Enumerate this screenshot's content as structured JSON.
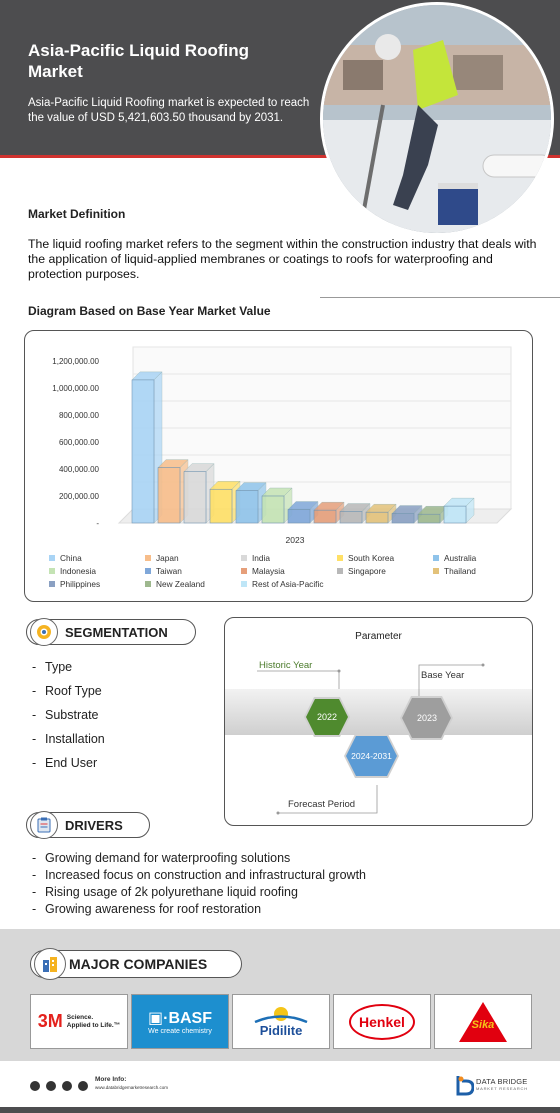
{
  "header": {
    "title": "Asia-Pacific Liquid Roofing Market",
    "subtitle": "Asia-Pacific Liquid Roofing market is expected to reach the value of USD 5,421,603.50 thousand by 2031."
  },
  "definition": {
    "heading": "Market Definition",
    "text": "The liquid roofing market refers to the segment within the construction industry that deals with the application of liquid-applied membranes or coatings to roofs for waterproofing and protection purposes."
  },
  "diagram": {
    "heading": "Diagram Based on Base Year Market Value"
  },
  "chart_data": {
    "type": "bar",
    "xlabel": "2023",
    "ylim": [
      0,
      1200000
    ],
    "yticks": [
      "1,200,000.00",
      "1,000,000.00",
      "800,000.00",
      "600,000.00",
      "400,000.00",
      "200,000.00",
      "-"
    ],
    "categories": [
      "China",
      "Japan",
      "India",
      "South Korea",
      "Australia",
      "Indonesia",
      "Taiwan",
      "Malaysia",
      "Singapore",
      "Thailand",
      "Philippines",
      "New Zealand",
      "Rest of Asia-Pacific"
    ],
    "values": [
      1060000,
      410000,
      380000,
      250000,
      240000,
      200000,
      100000,
      95000,
      85000,
      80000,
      70000,
      65000,
      125000
    ],
    "colors": [
      "#a9d4f5",
      "#f7bd8a",
      "#d9d9d9",
      "#ffe066",
      "#8fc3ea",
      "#c4e3b4",
      "#7fa7d9",
      "#e69f7a",
      "#b8b8b8",
      "#e3c27a",
      "#8aa0c2",
      "#9eb88e",
      "#bfe6f7"
    ],
    "grid": true,
    "legend_position": "bottom"
  },
  "segmentation": {
    "label": "SEGMENTATION",
    "items": [
      "Type",
      "Roof Type",
      "Substrate",
      "Installation",
      "End User"
    ]
  },
  "parameter": {
    "title": "Parameter",
    "historic_label": "Historic Year",
    "historic_value": "2022",
    "forecast_label": "Forecast Period",
    "forecast_value": "2024-2031",
    "base_label": "Base Year",
    "base_value": "2023",
    "colors": {
      "historic": "#4f8a2e",
      "forecast": "#5b9bd5",
      "base": "#9e9e9e"
    }
  },
  "drivers": {
    "label": "DRIVERS",
    "items": [
      "Growing demand for waterproofing solutions",
      "Increased focus on construction and infrastructural growth",
      "Rising usage of 2k polyurethane liquid roofing",
      "Growing awareness for roof restoration"
    ]
  },
  "companies": {
    "label": "MAJOR COMPANIES",
    "logos": [
      {
        "name": "3M",
        "tagline_1": "Science.",
        "tagline_2": "Applied to Life.™"
      },
      {
        "name": "BASF",
        "tagline": "We create chemistry"
      },
      {
        "name": "Pidilite"
      },
      {
        "name": "Henkel"
      },
      {
        "name": "Sika"
      }
    ]
  },
  "footer": {
    "more_info": "More Info:",
    "url": "www.databridgemarketresearch.com",
    "brand": "DATA BRIDGE",
    "brand_sub": "MARKET RESEARCH",
    "icons": [
      "whatsapp-icon",
      "facebook-icon",
      "twitter-icon",
      "instagram-icon"
    ]
  }
}
